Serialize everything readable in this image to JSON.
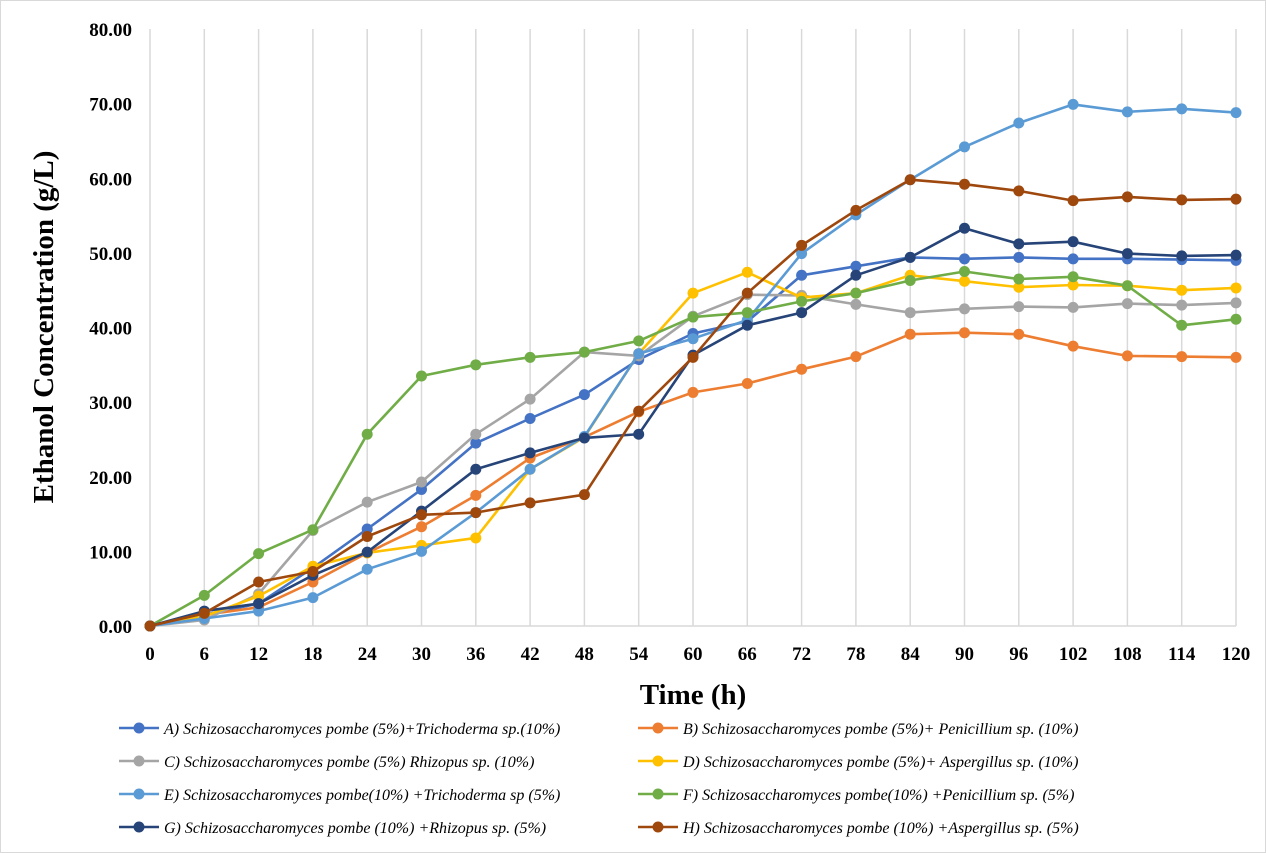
{
  "chart_data": {
    "type": "line",
    "xlabel": "Time (h)",
    "ylabel": "Ethanol Concentration (g/L)",
    "x": [
      0,
      6,
      12,
      18,
      24,
      30,
      36,
      42,
      48,
      54,
      60,
      66,
      72,
      78,
      84,
      90,
      96,
      102,
      108,
      114,
      120
    ],
    "x_tick_labels": [
      "0",
      "6",
      "12",
      "18",
      "24",
      "30",
      "36",
      "42",
      "48",
      "54",
      "60",
      "66",
      "72",
      "78",
      "84",
      "90",
      "96",
      "102",
      "108",
      "114",
      "120"
    ],
    "ylim": [
      0,
      80
    ],
    "y_tick_labels": [
      "0.00",
      "10.00",
      "20.00",
      "30.00",
      "40.00",
      "50.00",
      "60.00",
      "70.00",
      "80.00"
    ],
    "grid": "vertical",
    "legend_position": "bottom",
    "series": [
      {
        "name": "A) Schizosaccharomyces pombe (5%)+Trichoderma sp.(10%)",
        "color": "#4472C4",
        "values": [
          0,
          1.5,
          3.0,
          7.8,
          13.0,
          18.3,
          24.5,
          27.8,
          31.0,
          35.7,
          39.2,
          40.8,
          47.0,
          48.2,
          49.4,
          49.2,
          49.4,
          49.2,
          49.2,
          49.1,
          49.0
        ]
      },
      {
        "name": "B) Schizosaccharomyces pombe (5%)+  Penicillium sp. (10%)",
        "color": "#ED7D31",
        "values": [
          0,
          1.5,
          2.5,
          5.9,
          9.8,
          13.3,
          17.5,
          22.5,
          25.3,
          28.7,
          31.3,
          32.5,
          34.4,
          36.1,
          39.1,
          39.3,
          39.1,
          37.5,
          36.2,
          36.1,
          36.0
        ]
      },
      {
        "name": "C) Schizosaccharomyces pombe (5%)  Rhizopus sp. (10%)",
        "color": "#A5A5A5",
        "values": [
          0,
          0.8,
          4.3,
          12.8,
          16.6,
          19.3,
          25.7,
          30.4,
          36.7,
          36.2,
          41.5,
          44.4,
          44.3,
          43.1,
          42.0,
          42.5,
          42.8,
          42.7,
          43.2,
          43.0,
          43.3
        ]
      },
      {
        "name": "D) Schizosaccharomyces pombe (5%)+  Aspergillus sp. (10%)",
        "color": "#FFC000",
        "values": [
          0,
          1.3,
          4.0,
          8.0,
          9.8,
          10.8,
          11.8,
          21.0,
          25.3,
          36.5,
          44.6,
          47.4,
          44.0,
          44.6,
          47.0,
          46.2,
          45.4,
          45.7,
          45.6,
          45.0,
          45.3
        ]
      },
      {
        "name": "E) Schizosaccharomyces pombe(10%)  +Trichoderma sp (5%)",
        "color": "#5B9BD5",
        "values": [
          0,
          1.0,
          2.0,
          3.8,
          7.6,
          10.0,
          15.2,
          21.0,
          25.4,
          36.5,
          38.5,
          41.0,
          49.9,
          55.1,
          59.8,
          64.2,
          67.4,
          69.9,
          68.9,
          69.3,
          68.8
        ]
      },
      {
        "name": "F) Schizosaccharomyces pombe(10%)  +Penicillium sp. (5%)",
        "color": "#70AD47",
        "values": [
          0,
          4.1,
          9.7,
          12.9,
          25.7,
          33.5,
          35.0,
          36.0,
          36.7,
          38.2,
          41.4,
          42.0,
          43.5,
          44.6,
          46.3,
          47.5,
          46.5,
          46.8,
          45.6,
          40.3,
          41.1
        ]
      },
      {
        "name": "G) Schizosaccharomyces pombe (10%) +Rhizopus sp. (5%)",
        "color": "#264478",
        "values": [
          0,
          2.0,
          3.0,
          6.8,
          9.9,
          15.4,
          21.0,
          23.2,
          25.2,
          25.7,
          36.3,
          40.3,
          42.0,
          47.0,
          49.4,
          53.3,
          51.2,
          51.5,
          49.9,
          49.6,
          49.7
        ]
      },
      {
        "name": "H) Schizosaccharomyces pombe (10%) +Aspergillus sp. (5%)",
        "color": "#9E480E",
        "values": [
          0,
          1.7,
          5.9,
          7.3,
          12.0,
          14.9,
          15.2,
          16.5,
          17.6,
          28.8,
          36.0,
          44.6,
          51.0,
          55.7,
          59.8,
          59.2,
          58.3,
          57.0,
          57.5,
          57.1,
          57.2
        ]
      }
    ]
  }
}
